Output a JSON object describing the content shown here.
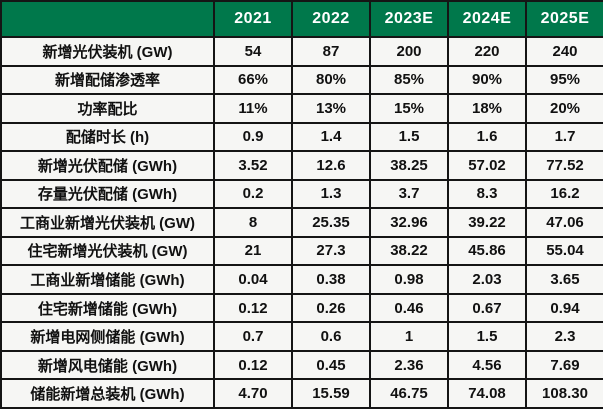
{
  "colors": {
    "header_background": "#00784b",
    "header_text": "#ffffff",
    "cell_background": "#f6f6f4",
    "border": "#151515",
    "body_text": "#111111"
  },
  "chart_data": {
    "type": "table",
    "title": "",
    "columns": [
      "",
      "2021",
      "2022",
      "2023E",
      "2024E",
      "2025E"
    ],
    "rows": [
      {
        "label": "新增光伏装机 (GW)",
        "values": [
          "54",
          "87",
          "200",
          "220",
          "240"
        ]
      },
      {
        "label": "新增配储渗透率",
        "values": [
          "66%",
          "80%",
          "85%",
          "90%",
          "95%"
        ]
      },
      {
        "label": "功率配比",
        "values": [
          "11%",
          "13%",
          "15%",
          "18%",
          "20%"
        ]
      },
      {
        "label": "配储时长 (h)",
        "values": [
          "0.9",
          "1.4",
          "1.5",
          "1.6",
          "1.7"
        ]
      },
      {
        "label": "新增光伏配储 (GWh)",
        "values": [
          "3.52",
          "12.6",
          "38.25",
          "57.02",
          "77.52"
        ]
      },
      {
        "label": "存量光伏配储 (GWh)",
        "values": [
          "0.2",
          "1.3",
          "3.7",
          "8.3",
          "16.2"
        ]
      },
      {
        "label": "工商业新增光伏装机 (GW)",
        "values": [
          "8",
          "25.35",
          "32.96",
          "39.22",
          "47.06"
        ]
      },
      {
        "label": "住宅新增光伏装机 (GW)",
        "values": [
          "21",
          "27.3",
          "38.22",
          "45.86",
          "55.04"
        ]
      },
      {
        "label": "工商业新增储能 (GWh)",
        "values": [
          "0.04",
          "0.38",
          "0.98",
          "2.03",
          "3.65"
        ]
      },
      {
        "label": "住宅新增储能 (GWh)",
        "values": [
          "0.12",
          "0.26",
          "0.46",
          "0.67",
          "0.94"
        ]
      },
      {
        "label": "新增电网侧储能 (GWh)",
        "values": [
          "0.7",
          "0.6",
          "1",
          "1.5",
          "2.3"
        ]
      },
      {
        "label": "新增风电储能 (GWh)",
        "values": [
          "0.12",
          "0.45",
          "2.36",
          "4.56",
          "7.69"
        ]
      },
      {
        "label": "储能新增总装机 (GWh)",
        "values": [
          "4.70",
          "15.59",
          "46.75",
          "74.08",
          "108.30"
        ]
      }
    ]
  }
}
